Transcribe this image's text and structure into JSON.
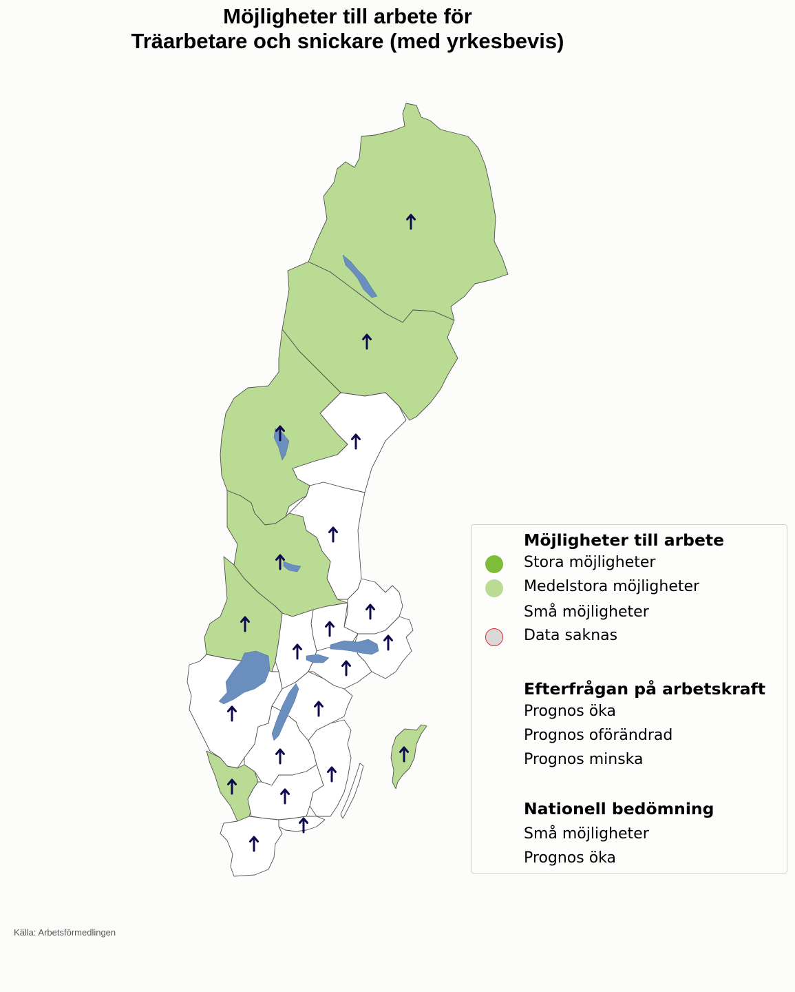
{
  "title": {
    "line1": "Möjligheter till arbete för",
    "line2": "Träarbetare och snickare (med yrkesbevis)"
  },
  "colors": {
    "stora": "#7dbd3a",
    "medelstora": "#b9db93",
    "sma": "#ffffff",
    "data_saknas_fill": "#d9d9d9",
    "data_saknas_border": "#e8262a",
    "arrow": "#0f0a4e",
    "lake": "#6a8fbf",
    "border": "#505050"
  },
  "regions": [
    {
      "name": "norrbotten",
      "category": "medelstora",
      "prognos": "up"
    },
    {
      "name": "vasterbotten",
      "category": "medelstora",
      "prognos": "up"
    },
    {
      "name": "vasternorrland",
      "category": "sma",
      "prognos": "up"
    },
    {
      "name": "jamtland",
      "category": "medelstora",
      "prognos": "up"
    },
    {
      "name": "gavleborg",
      "category": "sma",
      "prognos": "up"
    },
    {
      "name": "dalarna",
      "category": "medelstora",
      "prognos": "up"
    },
    {
      "name": "uppsala",
      "category": "sma",
      "prognos": "up"
    },
    {
      "name": "varmland",
      "category": "medelstora",
      "prognos": "up"
    },
    {
      "name": "vastmanland",
      "category": "sma",
      "prognos": "up"
    },
    {
      "name": "orebro",
      "category": "sma",
      "prognos": "up"
    },
    {
      "name": "stockholm",
      "category": "sma",
      "prognos": "up"
    },
    {
      "name": "sodermanland",
      "category": "sma",
      "prognos": "up"
    },
    {
      "name": "vastra-gotaland",
      "category": "sma",
      "prognos": "up"
    },
    {
      "name": "ostergotland",
      "category": "sma",
      "prognos": "up"
    },
    {
      "name": "jonkoping",
      "category": "sma",
      "prognos": "up"
    },
    {
      "name": "kalmar",
      "category": "sma",
      "prognos": "up"
    },
    {
      "name": "gotland",
      "category": "medelstora",
      "prognos": "up"
    },
    {
      "name": "halland",
      "category": "medelstora",
      "prognos": "up"
    },
    {
      "name": "kronoberg",
      "category": "sma",
      "prognos": "up"
    },
    {
      "name": "blekinge",
      "category": "sma",
      "prognos": "up"
    },
    {
      "name": "skane",
      "category": "sma",
      "prognos": "up"
    }
  ],
  "legend": {
    "section1_title": "Möjligheter till arbete",
    "stora": "Stora möjligheter",
    "medelstora": "Medelstora möjligheter",
    "sma": "Små möjligheter",
    "data_saknas": "Data saknas",
    "section2_title": "Efterfrågan på arbetskraft",
    "oka": "Prognos öka",
    "oforandrad": "Prognos oförändrad",
    "minska": "Prognos minska",
    "section3_title": "Nationell bedömning",
    "national_category": "Små möjligheter",
    "national_prognos": "Prognos öka"
  },
  "source": "Källa: Arbetsförmedlingen"
}
